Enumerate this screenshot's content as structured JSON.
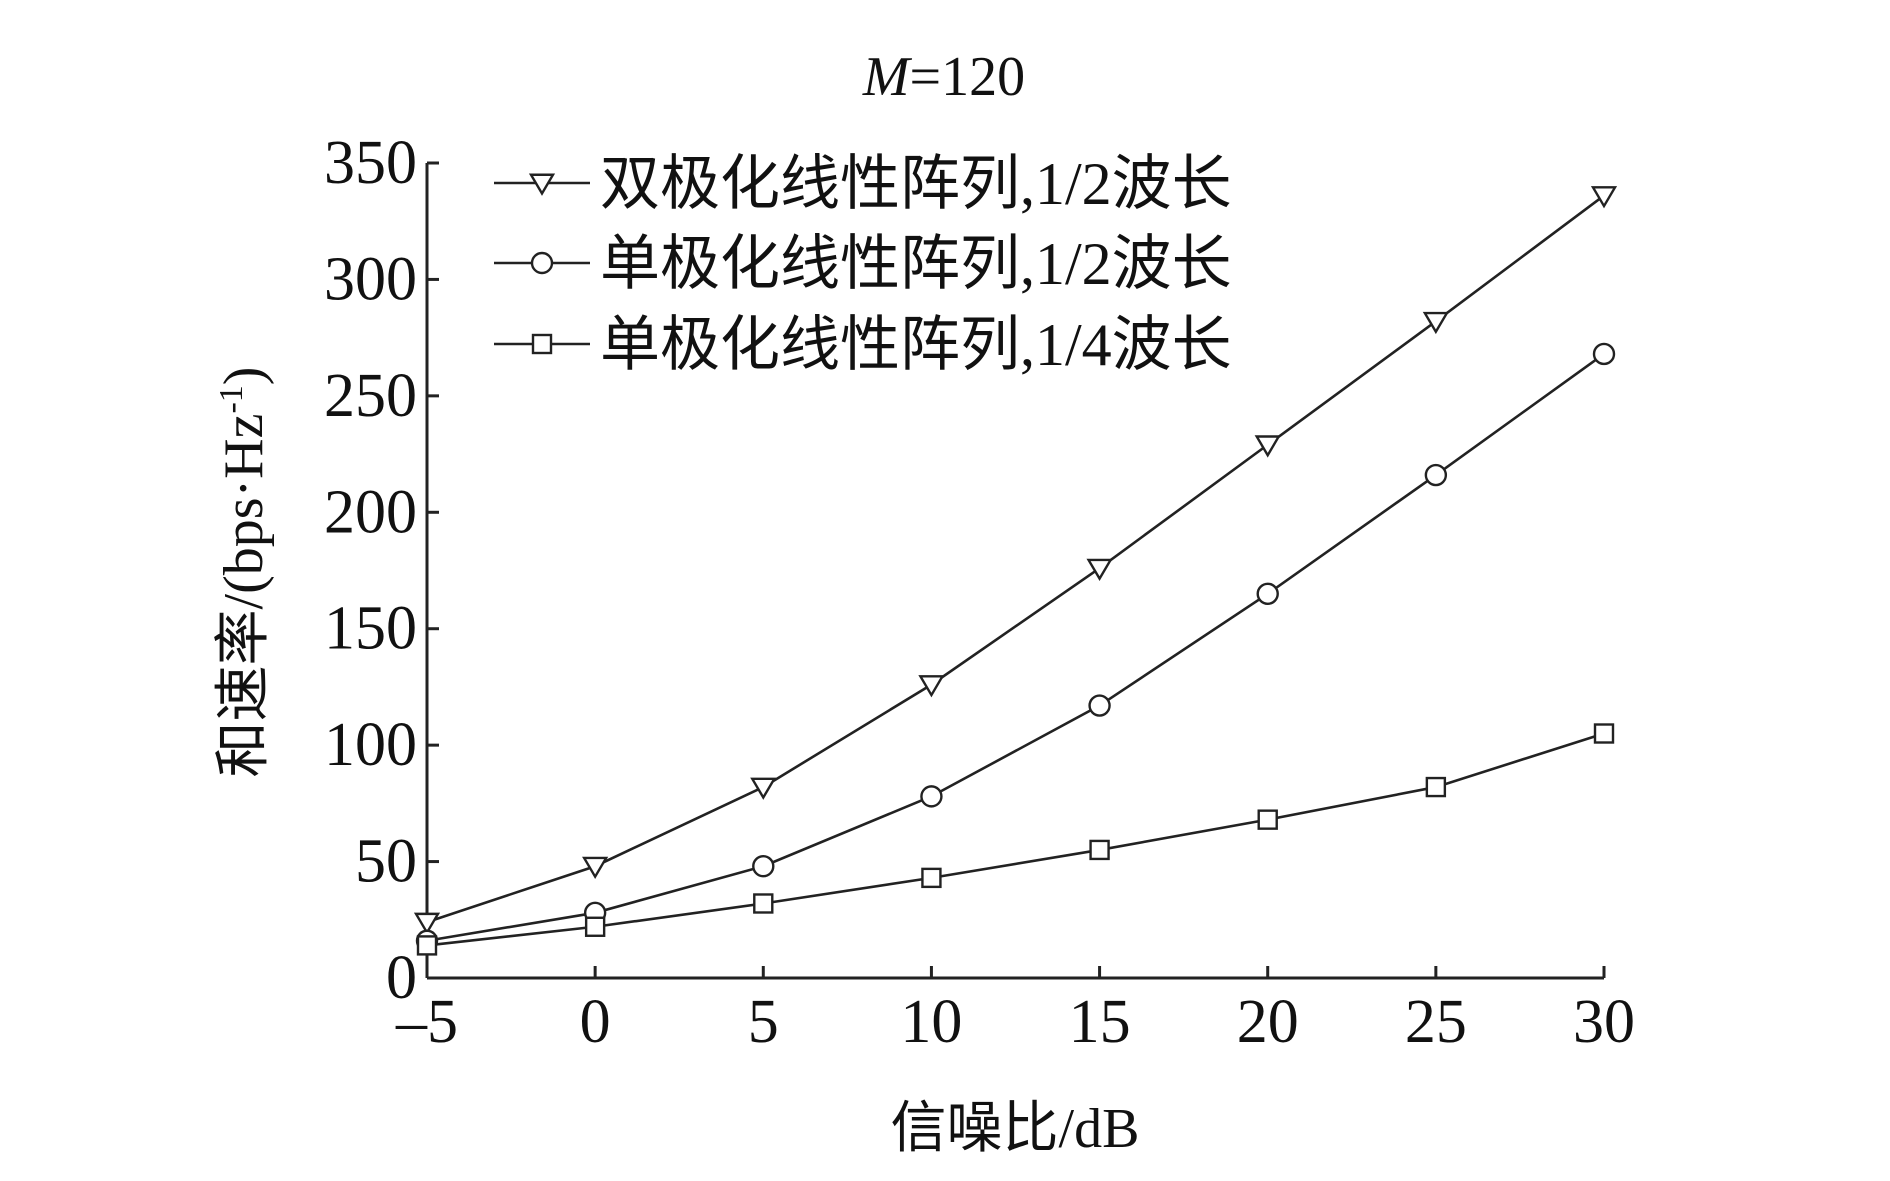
{
  "chart_data": {
    "type": "line",
    "title": "M=120",
    "title_parts": {
      "italic": "M",
      "rest": "=120"
    },
    "xlabel": "信噪比/dB",
    "ylabel": "和速率/(bps·Hz",
    "ylabel_sup": "-1",
    "ylabel_close": ")",
    "xlim": [
      -5,
      30
    ],
    "ylim": [
      0,
      350
    ],
    "x": [
      -5,
      0,
      5,
      10,
      15,
      20,
      25,
      30
    ],
    "x_tick_labels": [
      "–5",
      "0",
      "5",
      "10",
      "15",
      "20",
      "25",
      "30"
    ],
    "y_ticks": [
      0,
      50,
      100,
      150,
      200,
      250,
      300,
      350
    ],
    "y_tick_labels": [
      "0",
      "50",
      "100",
      "150",
      "200",
      "250",
      "300",
      "350"
    ],
    "grid": false,
    "legend_position": "top-left",
    "series": [
      {
        "name": "双极化线性阵列,1/2波长",
        "marker": "triangle-down",
        "values": [
          24,
          48,
          82,
          126,
          176,
          229,
          282,
          336
        ]
      },
      {
        "name": "单极化线性阵列,1/2波长",
        "marker": "circle",
        "values": [
          16,
          28,
          48,
          78,
          117,
          165,
          216,
          268
        ]
      },
      {
        "name": "单极化线性阵列,1/4波长",
        "marker": "square",
        "values": [
          14,
          22,
          32,
          43,
          55,
          68,
          82,
          105
        ]
      }
    ],
    "line_color": "#222222"
  }
}
